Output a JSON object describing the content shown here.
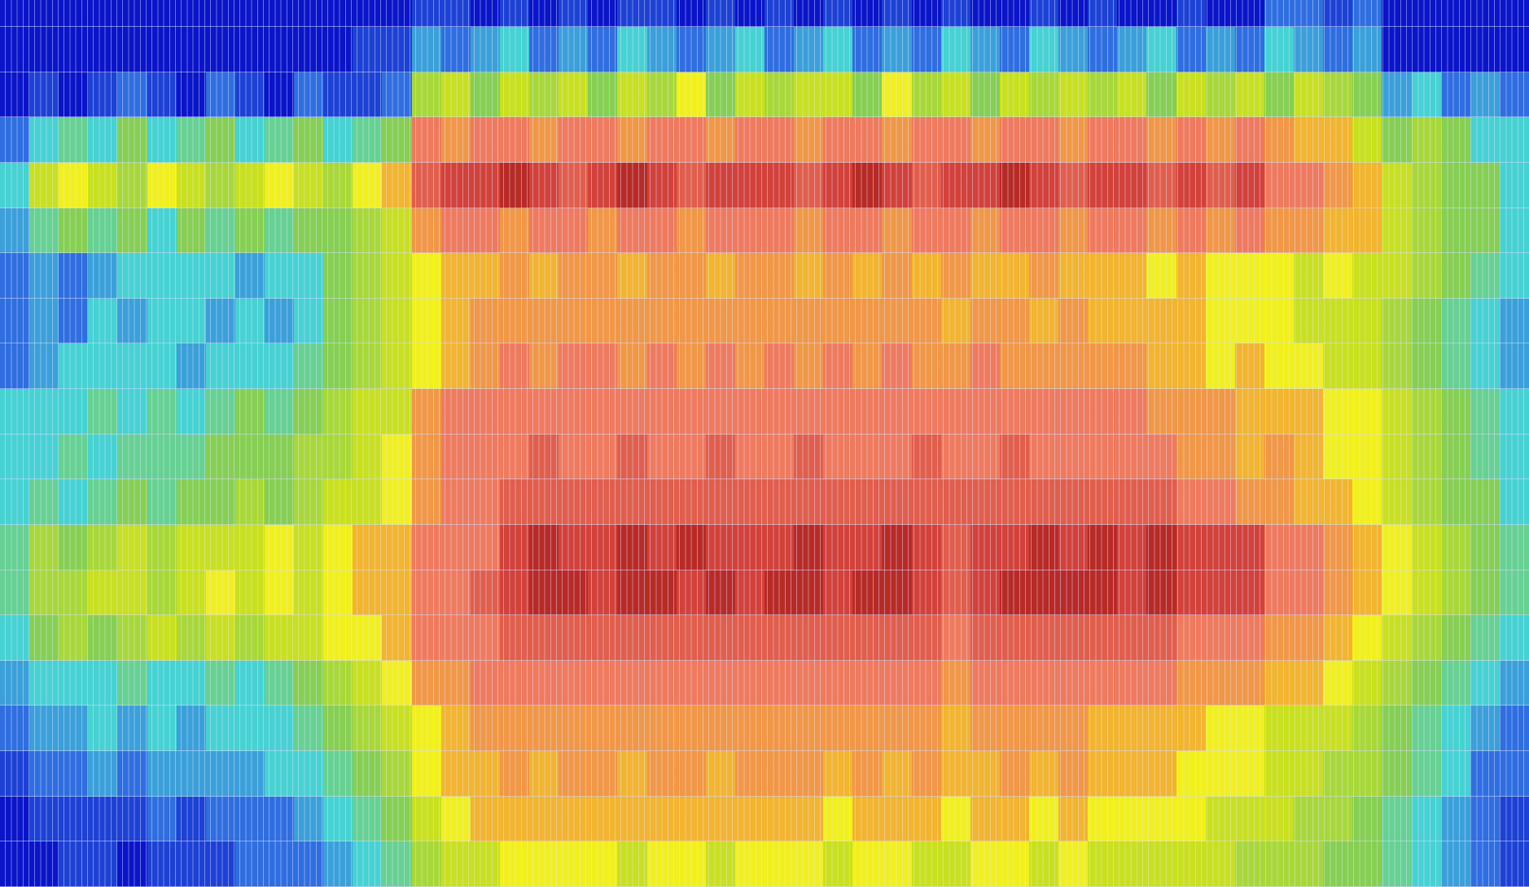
{
  "chart_data": {
    "type": "heatmap",
    "title": "",
    "xlabel": "",
    "ylabel": "",
    "grid": true,
    "legend": "none",
    "value_range": [
      0,
      10
    ],
    "colorscale": [
      {
        "v": 0,
        "color": "#00007a"
      },
      {
        "v": 1,
        "color": "#0a14c8"
      },
      {
        "v": 2,
        "color": "#2f6ee0"
      },
      {
        "v": 3,
        "color": "#46d2d2"
      },
      {
        "v": 4,
        "color": "#86cf52"
      },
      {
        "v": 5,
        "color": "#c9e01e"
      },
      {
        "v": 5.5,
        "color": "#f2f01c"
      },
      {
        "v": 6,
        "color": "#f3b42e"
      },
      {
        "v": 7,
        "color": "#ef7a5e"
      },
      {
        "v": 8,
        "color": "#d2413a"
      },
      {
        "v": 9,
        "color": "#9e1212"
      },
      {
        "v": 10,
        "color": "#6e0000"
      }
    ],
    "matrix": [
      [
        1,
        1,
        1,
        1,
        1,
        1,
        1,
        1,
        1,
        1,
        1,
        1,
        1,
        1,
        1.5,
        1.5,
        1,
        1.5,
        1,
        1.5,
        1,
        1.5,
        1.5,
        1,
        1.5,
        1,
        1.5,
        1,
        1.5,
        1,
        1.5,
        1,
        1.5,
        1,
        1,
        1.5,
        1,
        1.5,
        1,
        1,
        1.5,
        1,
        1,
        2,
        2,
        1.5,
        2,
        1,
        1,
        1,
        1,
        1
      ],
      [
        1,
        1,
        1,
        1,
        1,
        1,
        1,
        1,
        1,
        1,
        1,
        1,
        1.5,
        1.5,
        2.5,
        2,
        2.5,
        3,
        2,
        2.5,
        2,
        3,
        2.5,
        2,
        2.5,
        3,
        2,
        2.5,
        3,
        2,
        2.5,
        2,
        3,
        2.5,
        2,
        3,
        2.5,
        2,
        2.5,
        3,
        2,
        2.5,
        2,
        3,
        2.5,
        2,
        2.5,
        1,
        1,
        1,
        1,
        1
      ],
      [
        1,
        1.5,
        1,
        1.5,
        2,
        1.5,
        1,
        2,
        1.5,
        1,
        2,
        1.5,
        1.5,
        2,
        4.5,
        5,
        4,
        5,
        4.5,
        5,
        4,
        5,
        4.5,
        5.5,
        4,
        5,
        4.5,
        5,
        5,
        4,
        5.5,
        4.5,
        5,
        4,
        5,
        4.5,
        5,
        4.5,
        5,
        4,
        5,
        4.5,
        5,
        4,
        5,
        4.5,
        4,
        2.5,
        3,
        2,
        2.5,
        2
      ],
      [
        2,
        3,
        3.5,
        3,
        4,
        3,
        3.5,
        4,
        3,
        3.5,
        4,
        3,
        3.5,
        4,
        7,
        6.5,
        7,
        7,
        6.5,
        7,
        7,
        6.5,
        7,
        7,
        6.5,
        7,
        7,
        6.5,
        7,
        7,
        6.5,
        7,
        7,
        6.5,
        7,
        7,
        6.5,
        7,
        7,
        6.5,
        7,
        6.5,
        7,
        6.5,
        6,
        6,
        5,
        4,
        4.5,
        4,
        3,
        3
      ],
      [
        3,
        5,
        5.5,
        5,
        4.5,
        5.5,
        5,
        4.5,
        5,
        5.5,
        5,
        4.5,
        5.5,
        6,
        7.5,
        8,
        8,
        8.5,
        8,
        7.5,
        8,
        8.5,
        8,
        7.5,
        8,
        8,
        8,
        7.5,
        8,
        8.5,
        8,
        7.5,
        8,
        8,
        8.5,
        8,
        7.5,
        8,
        8,
        7.5,
        8,
        7.5,
        8,
        7,
        7,
        6.5,
        6,
        5,
        4.5,
        4,
        4,
        3
      ],
      [
        2.5,
        3.5,
        4,
        3.5,
        4,
        3,
        4,
        3.5,
        4,
        3.5,
        4,
        4,
        4.5,
        5,
        6.5,
        7,
        7,
        6.5,
        7,
        7,
        6.5,
        7,
        7,
        6.5,
        7,
        7,
        7,
        6.5,
        7,
        7,
        6.5,
        7,
        7,
        6.5,
        7,
        7,
        6.5,
        7,
        7,
        6.5,
        7,
        6.5,
        7,
        6.5,
        6.5,
        6,
        6,
        5,
        4.5,
        4,
        4,
        3
      ],
      [
        2,
        2.5,
        2,
        2.5,
        3,
        3,
        3,
        3,
        2.5,
        3,
        3,
        4,
        4.5,
        5,
        5.5,
        6,
        6,
        6.5,
        6,
        6.5,
        6.5,
        6,
        6.5,
        6.5,
        6,
        6.5,
        6.5,
        6,
        6.5,
        6,
        6.5,
        6,
        6.5,
        6,
        6,
        6.5,
        6,
        6,
        6,
        5.5,
        6,
        5.5,
        5.5,
        5.5,
        5,
        5.5,
        5,
        5,
        4.5,
        4,
        3.5,
        3
      ],
      [
        2,
        2.5,
        2,
        3,
        2.5,
        3,
        3,
        2.5,
        3,
        2.5,
        3,
        4,
        4.5,
        5,
        5.5,
        6,
        6.5,
        6.5,
        6.5,
        6.5,
        6.5,
        6.5,
        6.5,
        6.5,
        6.5,
        6.5,
        6.5,
        6.5,
        6.5,
        6.5,
        6.5,
        6.5,
        6,
        6.5,
        6.5,
        6,
        6.5,
        6,
        6,
        6,
        6,
        5.5,
        5.5,
        5.5,
        5,
        5,
        5,
        4.5,
        4,
        3.5,
        3,
        2.5
      ],
      [
        2,
        2.5,
        3,
        3,
        3,
        3,
        2.5,
        3,
        3,
        3,
        3.5,
        4,
        4.5,
        5,
        5.5,
        6,
        6.5,
        7,
        6.5,
        7,
        7,
        6.5,
        7,
        6.5,
        7,
        6.5,
        7,
        6.5,
        7,
        6.5,
        7,
        6.5,
        6.5,
        7,
        6.5,
        6.5,
        6.5,
        6.5,
        6.5,
        6,
        6,
        5.5,
        6,
        5.5,
        5.5,
        5,
        5,
        4.5,
        4,
        3.5,
        3,
        2.5
      ],
      [
        3,
        3,
        3,
        3.5,
        3,
        3.5,
        3,
        3.5,
        4,
        3.5,
        4,
        4.5,
        5,
        5,
        6.5,
        7,
        7,
        7,
        7,
        7,
        7,
        7,
        7,
        7,
        7,
        7,
        7,
        7,
        7,
        7,
        7,
        7,
        7,
        7,
        7,
        7,
        7,
        7,
        7,
        6.5,
        6.5,
        6.5,
        6,
        6,
        6,
        5.5,
        5.5,
        5,
        4.5,
        4,
        3.5,
        3
      ],
      [
        3,
        3,
        3.5,
        3,
        3.5,
        3.5,
        3.5,
        4,
        4,
        4,
        4.5,
        4.5,
        5,
        5.5,
        6.5,
        7,
        7,
        7,
        7.5,
        7,
        7,
        7.5,
        7,
        7,
        7.5,
        7,
        7,
        7.5,
        7,
        7,
        7,
        7.5,
        7,
        7,
        7.5,
        7,
        7,
        7,
        7,
        7,
        6.5,
        6.5,
        6,
        6.5,
        6,
        5.5,
        5.5,
        5,
        4.5,
        4,
        3.5,
        3
      ],
      [
        3,
        3.5,
        3,
        3.5,
        4,
        3.5,
        4,
        4,
        4.5,
        4,
        4.5,
        5,
        5,
        5.5,
        6.5,
        7,
        7,
        7.5,
        7.5,
        7.5,
        7.5,
        7.5,
        7.5,
        7.5,
        7.5,
        7.5,
        7.5,
        7.5,
        7.5,
        7.5,
        7.5,
        7.5,
        7.5,
        7.5,
        7.5,
        7.5,
        7.5,
        7.5,
        7.5,
        7.5,
        7,
        7,
        6.5,
        6.5,
        6,
        6,
        5.5,
        5,
        4.5,
        4,
        4,
        3
      ],
      [
        3.5,
        4.5,
        4,
        4.5,
        5,
        4.5,
        5,
        5,
        5,
        5.5,
        5,
        5.5,
        6,
        6,
        7,
        7,
        7,
        8,
        8.5,
        8,
        8,
        8.5,
        8,
        8.5,
        8,
        8,
        8,
        8.5,
        8,
        8,
        8.5,
        8,
        7.5,
        8,
        8,
        8.5,
        8,
        8.5,
        8,
        8.5,
        8,
        8,
        8,
        7,
        7,
        6.5,
        6,
        5.5,
        5,
        4.5,
        4,
        3.5
      ],
      [
        3.5,
        4.5,
        4.5,
        5,
        5,
        4.5,
        5,
        5.5,
        5,
        5.5,
        5,
        5.5,
        6,
        6,
        7,
        7,
        7.5,
        8,
        8.5,
        8.5,
        8,
        8.5,
        8.5,
        8,
        8.5,
        8,
        8.5,
        8.5,
        8,
        8.5,
        8.5,
        8,
        7.5,
        8,
        8.5,
        8.5,
        8.5,
        8.5,
        8,
        8.5,
        8,
        8,
        8,
        7,
        7,
        6.5,
        6,
        5.5,
        5,
        4.5,
        4,
        3.5
      ],
      [
        3,
        4,
        4.5,
        4,
        4.5,
        5,
        4.5,
        5,
        4.5,
        5,
        5,
        5.5,
        5.5,
        6,
        7,
        7,
        7,
        7.5,
        7.5,
        7.5,
        7.5,
        7.5,
        7.5,
        7.5,
        7.5,
        7.5,
        7.5,
        7.5,
        7.5,
        7.5,
        7.5,
        7.5,
        7,
        7.5,
        7.5,
        7.5,
        7.5,
        7.5,
        7.5,
        7.5,
        7,
        7,
        7,
        6.5,
        6.5,
        6,
        5.5,
        5,
        4.5,
        4,
        3.5,
        3
      ],
      [
        2.5,
        3,
        3,
        3,
        3.5,
        3,
        3,
        3.5,
        3,
        3.5,
        4,
        4.5,
        5,
        5.5,
        6.5,
        6.5,
        7,
        7,
        7,
        7,
        7,
        7,
        7,
        7,
        7,
        7,
        7,
        7,
        7,
        7,
        7,
        7,
        6.5,
        7,
        7,
        7,
        7,
        7,
        7,
        7,
        6.5,
        6.5,
        6.5,
        6,
        6,
        5.5,
        5,
        4.5,
        4,
        3.5,
        3,
        2.5
      ],
      [
        2,
        2.5,
        2.5,
        3,
        2.5,
        3,
        2.5,
        3,
        3,
        3,
        3.5,
        4,
        4.5,
        5,
        5.5,
        6,
        6.5,
        6.5,
        6.5,
        6.5,
        6.5,
        6.5,
        6.5,
        6.5,
        6.5,
        6.5,
        6.5,
        6.5,
        6.5,
        6.5,
        6.5,
        6.5,
        6,
        6.5,
        6.5,
        6.5,
        6.5,
        6,
        6,
        6,
        6,
        5.5,
        5.5,
        5,
        5,
        5,
        4.5,
        4,
        3.5,
        3,
        2.5,
        2
      ],
      [
        1.5,
        2,
        2,
        2.5,
        2,
        2.5,
        2.5,
        2.5,
        2.5,
        3,
        3,
        3.5,
        4,
        4.5,
        5.5,
        6,
        6,
        6.5,
        6,
        6.5,
        6.5,
        6,
        6.5,
        6.5,
        6,
        6.5,
        6.5,
        6.5,
        6,
        6.5,
        6,
        6.5,
        6,
        6,
        6.5,
        6,
        6.5,
        6,
        6,
        6,
        5.5,
        5.5,
        5.5,
        5,
        5,
        4.5,
        4.5,
        4,
        3.5,
        3,
        2,
        2
      ],
      [
        1,
        1.5,
        1.5,
        1.5,
        1.5,
        2,
        1.5,
        2,
        2,
        2,
        2.5,
        3,
        3.5,
        4,
        5,
        5.5,
        6,
        6,
        6,
        6,
        6,
        6,
        6,
        6,
        6,
        6,
        6,
        6,
        5.5,
        6,
        6,
        6,
        5.5,
        6,
        6,
        5.5,
        6,
        5.5,
        5.5,
        5.5,
        5.5,
        5,
        5,
        5,
        4.5,
        4.5,
        4,
        3.5,
        3,
        2.5,
        2,
        1.5
      ],
      [
        1,
        1,
        1.5,
        1.5,
        1,
        1.5,
        1.5,
        1.5,
        2,
        2,
        2,
        2.5,
        3,
        3.5,
        4.5,
        5,
        5,
        5.5,
        5.5,
        5.5,
        5.5,
        5,
        5.5,
        5.5,
        5,
        5.5,
        5.5,
        5.5,
        5,
        5.5,
        5.5,
        5,
        5,
        5.5,
        5.5,
        5,
        5.5,
        5,
        5,
        5,
        5,
        5,
        4.5,
        4.5,
        4.5,
        4,
        4,
        3.5,
        3,
        2.5,
        2,
        1.5
      ]
    ]
  }
}
